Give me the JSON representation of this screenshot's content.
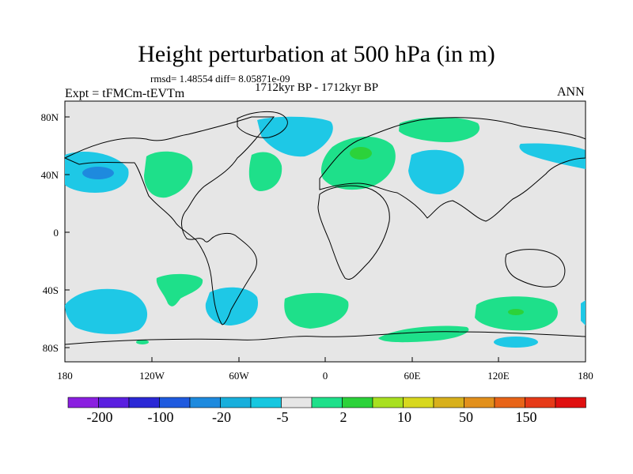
{
  "title": "Height perturbation at 500 hPa (in m)",
  "stats_line": "rmsd= 1.48554 diff= 8.05871e-09",
  "experiment": "Expt = tFMCm-tEVTm",
  "period": "1712kyr BP - 1712kyr BP",
  "season": "ANN",
  "lat_ticks": [
    "80N",
    "40N",
    "0",
    "40S",
    "80S"
  ],
  "lon_ticks": [
    "180",
    "120W",
    "60W",
    "0",
    "60E",
    "120E",
    "180"
  ],
  "colorbar": {
    "colors": [
      "#8a1fe0",
      "#5a1fe0",
      "#2b28d6",
      "#1f5adf",
      "#1e8ade",
      "#18afdc",
      "#16c7e0",
      "#e6e6e6",
      "#1ee08a",
      "#2cd23a",
      "#a8e020",
      "#d8d81e",
      "#d8b01c",
      "#e2901c",
      "#e86418",
      "#e63a18",
      "#e01010"
    ],
    "labels": [
      "-200",
      "-100",
      "-20",
      "-5",
      "2",
      "10",
      "50",
      "150"
    ]
  },
  "map_colors": {
    "ocean_land_bg": "#e6e6e6",
    "positive": "#1ee08a",
    "negative": "#1ec8e6",
    "negative_core": "#1e8ade",
    "positive_core": "#2cd23a"
  }
}
